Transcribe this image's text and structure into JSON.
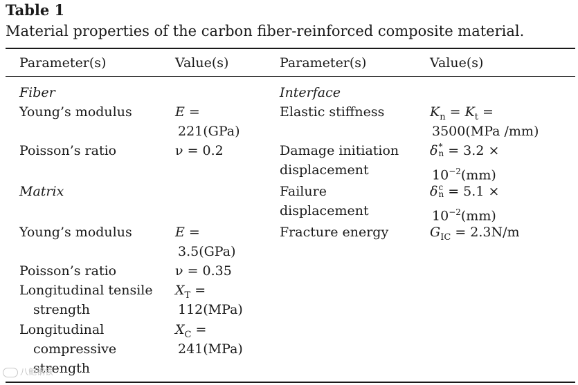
{
  "table": {
    "label": "Table 1",
    "caption": "Material properties of the carbon fiber-reinforced composite material.",
    "headers": [
      "Parameter(s)",
      "Value(s)",
      "Parameter(s)",
      "Value(s)"
    ]
  },
  "left": {
    "fiber_title": "Fiber",
    "fiber_youngs": "Young’s modulus",
    "fiber_youngs_v1": "E =",
    "fiber_youngs_v2": "221(GPa)",
    "fiber_poisson": "Poisson’s ratio",
    "fiber_poisson_v": "ν = 0.2",
    "matrix_title": "Matrix",
    "matrix_youngs": "Young’s modulus",
    "matrix_youngs_v1": "E =",
    "matrix_youngs_v2": "3.5(GPa)",
    "matrix_poisson": "Poisson’s ratio",
    "matrix_poisson_v": "ν = 0.35",
    "lt_1": "Longitudinal tensile",
    "lt_2": "strength",
    "lt_v1": "X",
    "lt_v1_sub": "T",
    "lt_v1_eq": " =",
    "lt_v2": "112(MPa)",
    "lc_1": "Longitudinal",
    "lc_2": "compressive",
    "lc_3": "strength",
    "lc_v1": "X",
    "lc_v1_sub": "C",
    "lc_v1_eq": " =",
    "lc_v2": "241(MPa)"
  },
  "right": {
    "interface_title": "Interface",
    "stiff": "Elastic stiffness",
    "stiff_k1": "K",
    "stiff_k1_sub": "n",
    "stiff_mid": " = ",
    "stiff_k2": "K",
    "stiff_k2_sub": "t",
    "stiff_end": " =",
    "stiff_v2": "3500(MPa /mm)",
    "dmg_1": "Damage initiation",
    "dmg_2": "displacement",
    "dmg_sym": "δ",
    "dmg_sup": "*",
    "dmg_sub": "n",
    "dmg_eq": " = 3.2 ×",
    "dmg_base": "10",
    "dmg_exp": "−2",
    "dmg_unit": "(mm)",
    "fail_1": "Failure",
    "fail_2": "displacement",
    "fail_sym": "δ",
    "fail_sup": "c",
    "fail_sub": "n",
    "fail_eq": " = 5.1 ×",
    "fail_base": "10",
    "fail_exp": "−2",
    "fail_unit": "(mm)",
    "frac": "Fracture energy",
    "frac_g": "G",
    "frac_sub": "IC",
    "frac_eq": " = 2.3N/m"
  },
  "watermark": "八鲍钢铁"
}
